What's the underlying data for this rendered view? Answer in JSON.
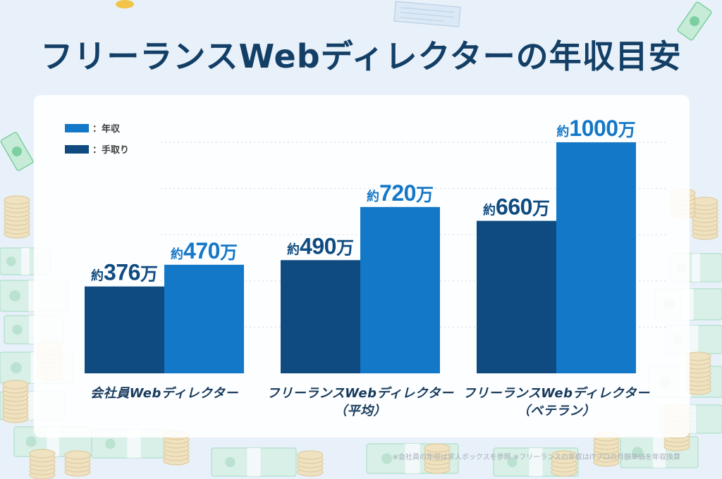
{
  "chart_data": {
    "type": "bar",
    "title": "フリーランスWebディレクターの年収目安",
    "categories": [
      [
        "会社員Webディレクター"
      ],
      [
        "フリーランスWebディレクター",
        "（平均）"
      ],
      [
        "フリーランスWebディレクター",
        "（ベテラン）"
      ]
    ],
    "series": [
      {
        "name": "年収",
        "values": [
          470,
          720,
          1000
        ],
        "color": "#1478c8"
      },
      {
        "name": "手取り",
        "values": [
          376,
          490,
          660
        ],
        "color": "#0f4b80"
      }
    ],
    "legend_separator": "：",
    "label_prefix": "約",
    "unit": "万",
    "ylim": [
      0,
      1000
    ],
    "grid": true,
    "legend_position": "top-left"
  },
  "footnote": "※会社員の年収は求人ボックスを参照 ※フリーランスの年収はITプロの月額単価を年収換算"
}
